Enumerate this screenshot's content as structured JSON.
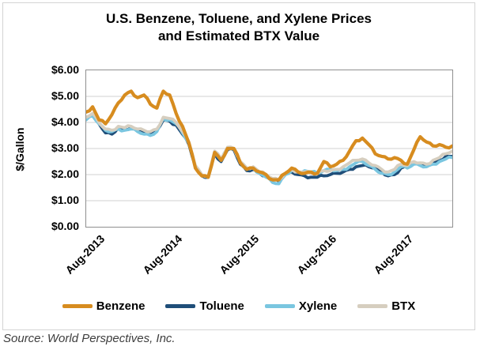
{
  "title": {
    "line1": "U.S. Benzene, Toluene, and Xylene Prices",
    "line2": "and Estimated BTX Value"
  },
  "source": "Source: World Perspectives, Inc.",
  "colors": {
    "benzene": "#d78c1f",
    "toluene": "#1f4e79",
    "xylene": "#7ac6e0",
    "btx": "#d6cebf",
    "gridline": "#d2d2d2",
    "plot_border": "#8f8f8f"
  },
  "chart_data": {
    "type": "line",
    "title": "U.S. Benzene, Toluene, and Xylene Prices and Estimated BTX Value",
    "ylabel": "$/Gallon",
    "xlabel": "",
    "ylim": [
      0,
      6
    ],
    "ytick_step": 1,
    "ytick_labels": [
      "$6.00",
      "$5.00",
      "$4.00",
      "$3.00",
      "$2.00",
      "$1.00",
      "$0.00"
    ],
    "xtick_labels": [
      "Aug-2013",
      "Aug-2014",
      "Aug-2015",
      "Aug-2016",
      "Aug-2017"
    ],
    "grid": "horizontal",
    "legend_position": "bottom",
    "x_months": [
      "Jul-2013",
      "Aug-2013",
      "Sep-2013",
      "Oct-2013",
      "Nov-2013",
      "Dec-2013",
      "Jan-2014",
      "Feb-2014",
      "Mar-2014",
      "Apr-2014",
      "May-2014",
      "Jun-2014",
      "Jul-2014",
      "Aug-2014",
      "Sep-2014",
      "Oct-2014",
      "Nov-2014",
      "Dec-2014",
      "Jan-2015",
      "Feb-2015",
      "Mar-2015",
      "Apr-2015",
      "May-2015",
      "Jun-2015",
      "Jul-2015",
      "Aug-2015",
      "Sep-2015",
      "Oct-2015",
      "Nov-2015",
      "Dec-2015",
      "Jan-2016",
      "Feb-2016",
      "Mar-2016",
      "Apr-2016",
      "May-2016",
      "Jun-2016",
      "Jul-2016",
      "Aug-2016",
      "Sep-2016",
      "Oct-2016",
      "Nov-2016",
      "Dec-2016",
      "Jan-2017",
      "Feb-2017",
      "Mar-2017",
      "Apr-2017",
      "May-2017",
      "Jun-2017",
      "Jul-2017",
      "Aug-2017",
      "Sep-2017",
      "Oct-2017",
      "Nov-2017",
      "Dec-2017",
      "Jan-2018",
      "Feb-2018",
      "Mar-2018",
      "Apr-2018"
    ],
    "xtick_month_index": [
      1,
      13,
      25,
      37,
      49
    ],
    "series": [
      {
        "name": "Benzene",
        "color": "#d78c1f",
        "values": [
          4.4,
          4.6,
          4.1,
          3.95,
          4.3,
          4.75,
          5.05,
          5.2,
          4.95,
          5.05,
          4.7,
          4.55,
          5.2,
          5.05,
          4.35,
          3.85,
          3.2,
          2.25,
          1.95,
          1.9,
          2.85,
          2.55,
          3.0,
          3.0,
          2.45,
          2.2,
          2.25,
          2.1,
          2.0,
          1.8,
          1.8,
          2.05,
          2.25,
          2.1,
          2.05,
          2.1,
          2.05,
          2.5,
          2.3,
          2.4,
          2.55,
          2.9,
          3.3,
          3.4,
          3.15,
          2.8,
          2.7,
          2.6,
          2.65,
          2.55,
          2.4,
          2.95,
          3.45,
          3.25,
          3.1,
          3.15,
          3.05,
          3.1
        ]
      },
      {
        "name": "Toluene",
        "color": "#1f4e79",
        "values": [
          4.15,
          4.3,
          3.95,
          3.6,
          3.55,
          3.8,
          3.75,
          3.8,
          3.7,
          3.65,
          3.6,
          3.7,
          4.1,
          4.05,
          3.9,
          3.55,
          3.15,
          2.3,
          1.95,
          1.9,
          2.8,
          2.5,
          2.95,
          2.95,
          2.4,
          2.15,
          2.2,
          2.05,
          1.95,
          1.8,
          1.75,
          2.0,
          2.1,
          2.0,
          1.95,
          1.9,
          1.9,
          1.95,
          2.0,
          2.05,
          2.1,
          2.2,
          2.3,
          2.35,
          2.3,
          2.25,
          2.1,
          1.95,
          2.0,
          2.25,
          2.35,
          2.45,
          2.4,
          2.35,
          2.45,
          2.55,
          2.7,
          2.7
        ]
      },
      {
        "name": "Xylene",
        "color": "#7ac6e0",
        "values": [
          4.1,
          4.25,
          3.95,
          3.7,
          3.65,
          3.75,
          3.7,
          3.75,
          3.65,
          3.55,
          3.5,
          3.65,
          4.15,
          4.1,
          3.95,
          3.6,
          3.2,
          2.3,
          1.95,
          1.9,
          2.85,
          2.55,
          3.0,
          3.0,
          2.45,
          2.2,
          2.25,
          2.05,
          1.9,
          1.7,
          1.65,
          2.0,
          2.15,
          2.1,
          2.15,
          2.1,
          2.05,
          2.15,
          2.2,
          2.15,
          2.2,
          2.3,
          2.45,
          2.5,
          2.35,
          2.2,
          2.05,
          2.0,
          2.1,
          2.3,
          2.25,
          2.4,
          2.35,
          2.3,
          2.4,
          2.5,
          2.6,
          2.65
        ]
      },
      {
        "name": "BTX",
        "color": "#d6cebf",
        "values": [
          4.2,
          4.35,
          4.0,
          3.75,
          3.7,
          3.85,
          3.8,
          3.85,
          3.75,
          3.7,
          3.65,
          3.75,
          4.2,
          4.15,
          4.0,
          3.65,
          3.25,
          2.35,
          2.0,
          1.95,
          2.9,
          2.6,
          3.05,
          3.0,
          2.5,
          2.25,
          2.3,
          2.1,
          2.0,
          1.85,
          1.8,
          2.05,
          2.2,
          2.1,
          2.1,
          2.05,
          2.05,
          2.15,
          2.15,
          2.2,
          2.3,
          2.45,
          2.55,
          2.6,
          2.45,
          2.35,
          2.2,
          2.1,
          2.2,
          2.4,
          2.35,
          2.5,
          2.45,
          2.4,
          2.55,
          2.65,
          2.8,
          2.9
        ]
      }
    ]
  }
}
